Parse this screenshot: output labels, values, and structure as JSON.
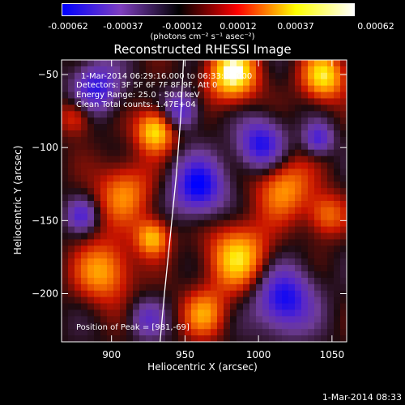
{
  "colorbar": {
    "ticks": [
      "-0.00062",
      "-0.00037",
      "-0.00012",
      "0.00012",
      "0.00037",
      "0.00062"
    ],
    "units": "(photons cm⁻² s⁻¹ asec⁻²)"
  },
  "title": "Reconstructed RHESSI Image",
  "info": {
    "time_range": "1-Mar-2014 06:29:16.000 to 06:33:08.000",
    "detectors": "Detectors: 3F 5F 6F 7F 8F 9F, Att 0",
    "energy": "Energy Range: 25.0 - 50.0 keV",
    "clean": "Clean    Total counts: 1.47E+04",
    "peak": "Position of Peak = [981,-69]"
  },
  "footer_stamp": "1-Mar-2014 08:33",
  "colors": {
    "frame": "#ffffff",
    "background": "#000000"
  },
  "chart_data": {
    "type": "heatmap",
    "title": "Reconstructed RHESSI Image",
    "xlabel": "Heliocentric X (arcsec)",
    "ylabel": "Heliocentric Y (arcsec)",
    "xlim": [
      866,
      1060
    ],
    "ylim": [
      -233,
      -40
    ],
    "x_ticks": [
      900,
      950,
      1000,
      1050
    ],
    "y_ticks": [
      -50,
      -100,
      -150,
      -200
    ],
    "colorscale": [
      "#0000ff",
      "#7f3fbf",
      "#000000",
      "#ff0000",
      "#ffff00",
      "#ffffff"
    ],
    "value_range": [
      -0.00062,
      0.00062
    ],
    "limb_curve": [
      [
        949,
        -40
      ],
      [
        947,
        -80
      ],
      [
        944,
        -120
      ],
      [
        940,
        -160
      ],
      [
        936,
        -200
      ],
      [
        933,
        -233
      ]
    ]
  }
}
